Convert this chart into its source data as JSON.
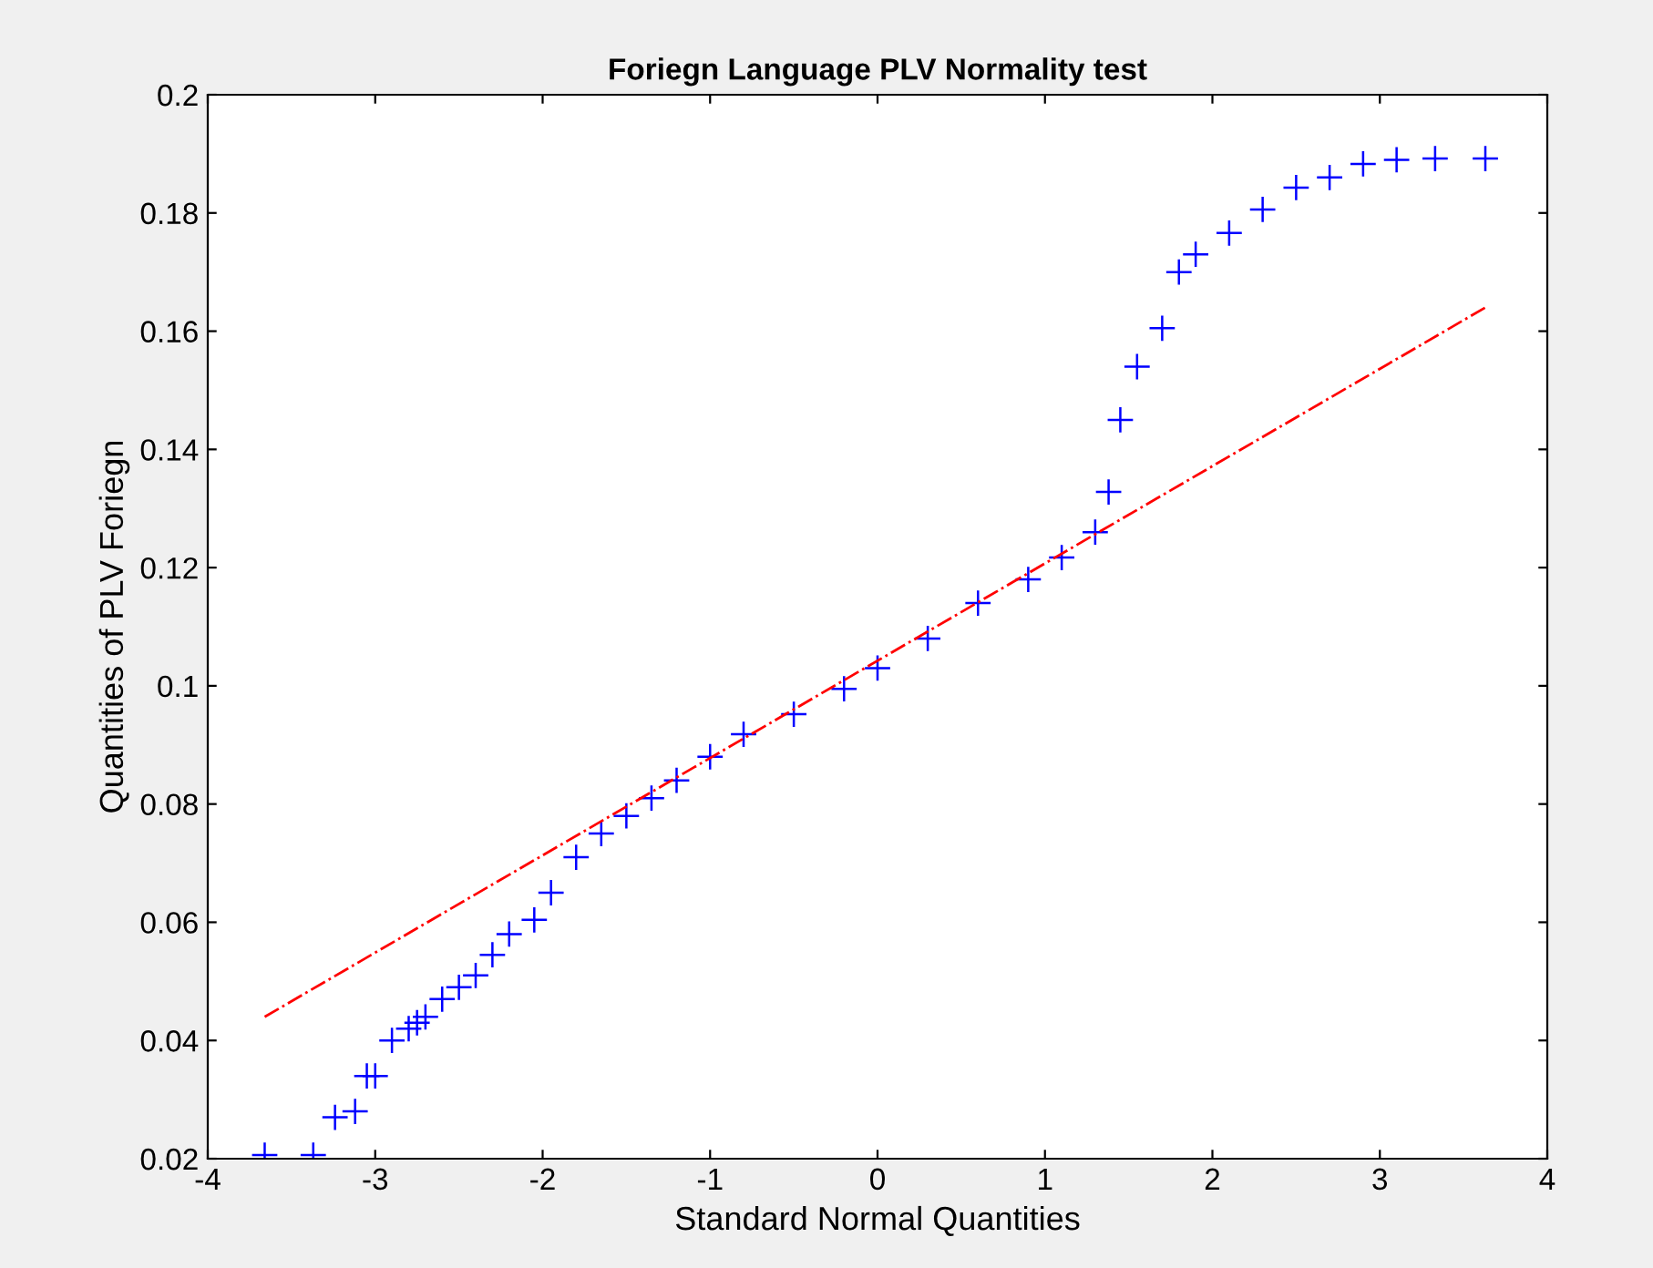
{
  "chart_data": {
    "type": "scatter",
    "title": "Foriegn Language PLV Normality test",
    "xlabel": "Standard Normal Quantities",
    "ylabel": "Quantities of PLV Foriegn",
    "xlim": [
      -4,
      4
    ],
    "ylim": [
      0.02,
      0.2
    ],
    "xticks": [
      -4,
      -3,
      -2,
      -1,
      0,
      1,
      2,
      3,
      4
    ],
    "yticks": [
      0.02,
      0.04,
      0.06,
      0.08,
      0.1,
      0.12,
      0.14,
      0.16,
      0.18,
      0.2
    ],
    "grid": false,
    "series": [
      {
        "color": "#0000ff",
        "marker": "cross",
        "x": [
          -3.66,
          -3.37,
          -3.24,
          -3.12,
          -3.05,
          -3.0,
          -2.9,
          -2.8,
          -2.75,
          -2.7,
          -2.6,
          -2.5,
          -2.4,
          -2.3,
          -2.2,
          -2.05,
          -1.95,
          -1.8,
          -1.65,
          -1.5,
          -1.35,
          -1.2,
          -1.0,
          -0.8,
          -0.5,
          -0.2,
          0,
          0.3,
          0.6,
          0.9,
          1.1,
          1.3,
          1.38,
          1.45,
          1.55,
          1.7,
          1.8,
          1.9,
          2.1,
          2.3,
          2.5,
          2.7,
          2.9,
          3.1,
          3.33,
          3.63
        ],
        "values": [
          0.0206,
          0.0206,
          0.027,
          0.028,
          0.034,
          0.034,
          0.04,
          0.042,
          0.043,
          0.044,
          0.047,
          0.049,
          0.051,
          0.0545,
          0.058,
          0.0604,
          0.065,
          0.071,
          0.075,
          0.078,
          0.081,
          0.084,
          0.088,
          0.0918,
          0.0952,
          0.0995,
          0.103,
          0.108,
          0.114,
          0.118,
          0.1217,
          0.126,
          0.1328,
          0.145,
          0.154,
          0.1605,
          0.17,
          0.173,
          0.1766,
          0.1806,
          0.1843,
          0.186,
          0.1883,
          0.189,
          0.1892,
          0.1892
        ]
      },
      {
        "type": "line",
        "color": "#ff0000",
        "line_style": "dashdot",
        "marker": "none",
        "x": [
          -3.66,
          3.63
        ],
        "values": [
          0.044,
          0.164
        ]
      }
    ]
  }
}
